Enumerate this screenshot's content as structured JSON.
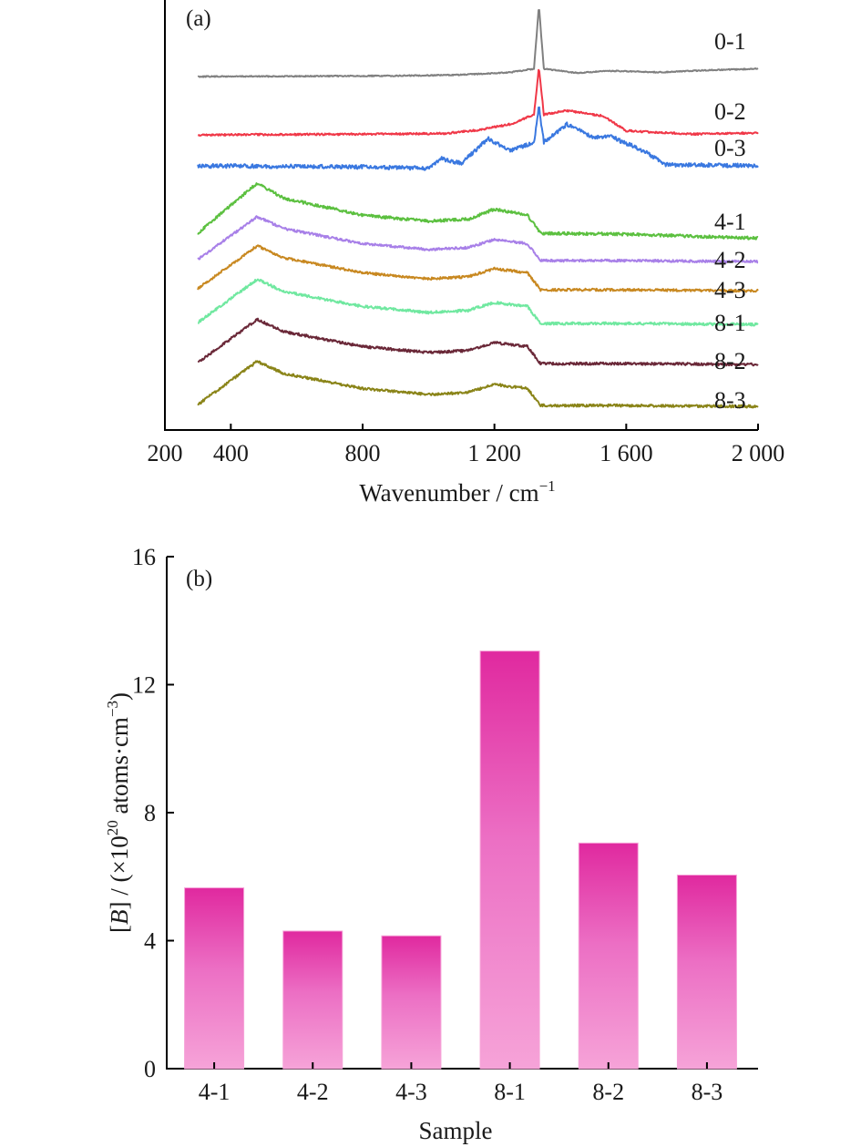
{
  "chart_data": [
    {
      "panel": "(a)",
      "type": "line",
      "xlabel": "Wavenumber / cm",
      "xlabel_sup": "−1",
      "ylabel": "",
      "xlim": [
        200,
        2000
      ],
      "x_ticks": [
        200,
        400,
        800,
        1200,
        1600,
        2000
      ],
      "x_tick_labels": [
        "200",
        "400",
        "800",
        "1 200",
        "1 600",
        "2 000"
      ],
      "y_ticks_shown": false,
      "legend": "none",
      "grid": false,
      "series": [
        {
          "name": "0-1",
          "color": "#808080",
          "profile": "sharp-peak",
          "points": [
            [
              300,
              0.0
            ],
            [
              600,
              0.02
            ],
            [
              900,
              0.05
            ],
            [
              1100,
              0.12
            ],
            [
              1250,
              0.3
            ],
            [
              1320,
              0.55
            ],
            [
              1335,
              5.0
            ],
            [
              1350,
              0.55
            ],
            [
              1450,
              0.25
            ],
            [
              1550,
              0.4
            ],
            [
              1700,
              0.3
            ],
            [
              1850,
              0.45
            ],
            [
              2000,
              0.55
            ]
          ]
        },
        {
          "name": "0-2",
          "color": "#f03848",
          "profile": "peak-with-bands",
          "points": [
            [
              300,
              0.0
            ],
            [
              800,
              0.05
            ],
            [
              1050,
              0.1
            ],
            [
              1150,
              0.35
            ],
            [
              1250,
              0.8
            ],
            [
              1320,
              1.5
            ],
            [
              1335,
              5.0
            ],
            [
              1350,
              1.5
            ],
            [
              1420,
              1.8
            ],
            [
              1530,
              1.4
            ],
            [
              1600,
              0.3
            ],
            [
              1800,
              0.05
            ],
            [
              2000,
              0.15
            ]
          ]
        },
        {
          "name": "0-3",
          "color": "#3a78e0",
          "profile": "peak-with-bands",
          "points": [
            [
              300,
              0.0
            ],
            [
              800,
              -0.1
            ],
            [
              1000,
              -0.2
            ],
            [
              1040,
              0.6
            ],
            [
              1100,
              0.2
            ],
            [
              1180,
              2.3
            ],
            [
              1250,
              1.3
            ],
            [
              1320,
              2.0
            ],
            [
              1335,
              5.0
            ],
            [
              1350,
              2.0
            ],
            [
              1420,
              3.5
            ],
            [
              1500,
              2.4
            ],
            [
              1550,
              2.5
            ],
            [
              1650,
              1.3
            ],
            [
              1720,
              0.1
            ],
            [
              2000,
              0.0
            ]
          ]
        },
        {
          "name": "4-1",
          "color": "#5cc040",
          "profile": "amorphous",
          "points": [
            [
              300,
              0.0
            ],
            [
              480,
              5.0
            ],
            [
              560,
              3.5
            ],
            [
              800,
              1.8
            ],
            [
              1000,
              1.2
            ],
            [
              1120,
              1.4
            ],
            [
              1200,
              2.4
            ],
            [
              1300,
              1.8
            ],
            [
              1340,
              0.0
            ],
            [
              1600,
              -0.1
            ],
            [
              2000,
              -0.5
            ]
          ]
        },
        {
          "name": "4-2",
          "color": "#a880e8",
          "profile": "amorphous",
          "points": [
            [
              300,
              0.0
            ],
            [
              480,
              4.3
            ],
            [
              560,
              3.1
            ],
            [
              800,
              1.6
            ],
            [
              1000,
              1.0
            ],
            [
              1120,
              1.2
            ],
            [
              1200,
              2.0
            ],
            [
              1300,
              1.6
            ],
            [
              1340,
              -0.1
            ],
            [
              1600,
              -0.1
            ],
            [
              2000,
              -0.2
            ]
          ]
        },
        {
          "name": "4-3",
          "color": "#c88820",
          "profile": "amorphous",
          "points": [
            [
              300,
              0.0
            ],
            [
              480,
              4.3
            ],
            [
              560,
              3.1
            ],
            [
              800,
              1.6
            ],
            [
              1000,
              1.0
            ],
            [
              1120,
              1.2
            ],
            [
              1200,
              2.0
            ],
            [
              1300,
              1.6
            ],
            [
              1340,
              -0.1
            ],
            [
              1600,
              -0.1
            ],
            [
              2000,
              -0.2
            ]
          ]
        },
        {
          "name": "8-1",
          "color": "#70e8a0",
          "profile": "amorphous",
          "points": [
            [
              300,
              0.0
            ],
            [
              480,
              4.3
            ],
            [
              560,
              3.1
            ],
            [
              800,
              1.6
            ],
            [
              1000,
              1.0
            ],
            [
              1120,
              1.2
            ],
            [
              1200,
              2.0
            ],
            [
              1300,
              1.6
            ],
            [
              1340,
              -0.1
            ],
            [
              1600,
              -0.1
            ],
            [
              2000,
              -0.2
            ]
          ]
        },
        {
          "name": "8-2",
          "color": "#6a2838",
          "profile": "amorphous",
          "points": [
            [
              300,
              0.0
            ],
            [
              480,
              4.3
            ],
            [
              560,
              3.1
            ],
            [
              800,
              1.6
            ],
            [
              1000,
              1.0
            ],
            [
              1120,
              1.2
            ],
            [
              1200,
              2.0
            ],
            [
              1300,
              1.6
            ],
            [
              1340,
              -0.1
            ],
            [
              1600,
              -0.1
            ],
            [
              2000,
              -0.2
            ]
          ]
        },
        {
          "name": "8-3",
          "color": "#8a8418",
          "profile": "amorphous",
          "points": [
            [
              300,
              0.0
            ],
            [
              480,
              4.3
            ],
            [
              560,
              3.1
            ],
            [
              800,
              1.6
            ],
            [
              1000,
              1.0
            ],
            [
              1120,
              1.2
            ],
            [
              1200,
              2.0
            ],
            [
              1300,
              1.6
            ],
            [
              1340,
              -0.1
            ],
            [
              1600,
              -0.1
            ],
            [
              2000,
              -0.2
            ]
          ]
        }
      ]
    },
    {
      "panel": "(b)",
      "type": "bar",
      "categories": [
        "4-1",
        "4-2",
        "4-3",
        "8-1",
        "8-2",
        "8-3"
      ],
      "values": [
        5.65,
        4.3,
        4.15,
        13.05,
        7.05,
        6.05
      ],
      "xlabel": "Sample",
      "ylabel_prefix": "[",
      "ylabel_italic": "B",
      "ylabel_mid": "] / (×10",
      "ylabel_sup1": "20",
      "ylabel_after": " atoms·cm",
      "ylabel_sup2": "−3",
      "ylabel_end": ")",
      "ylim": [
        0,
        16
      ],
      "y_ticks": [
        0,
        4,
        8,
        12,
        16
      ],
      "bar_color_top": "#e0299f",
      "bar_color_bottom": "#f6a3d8",
      "grid": false,
      "legend": "none"
    }
  ]
}
